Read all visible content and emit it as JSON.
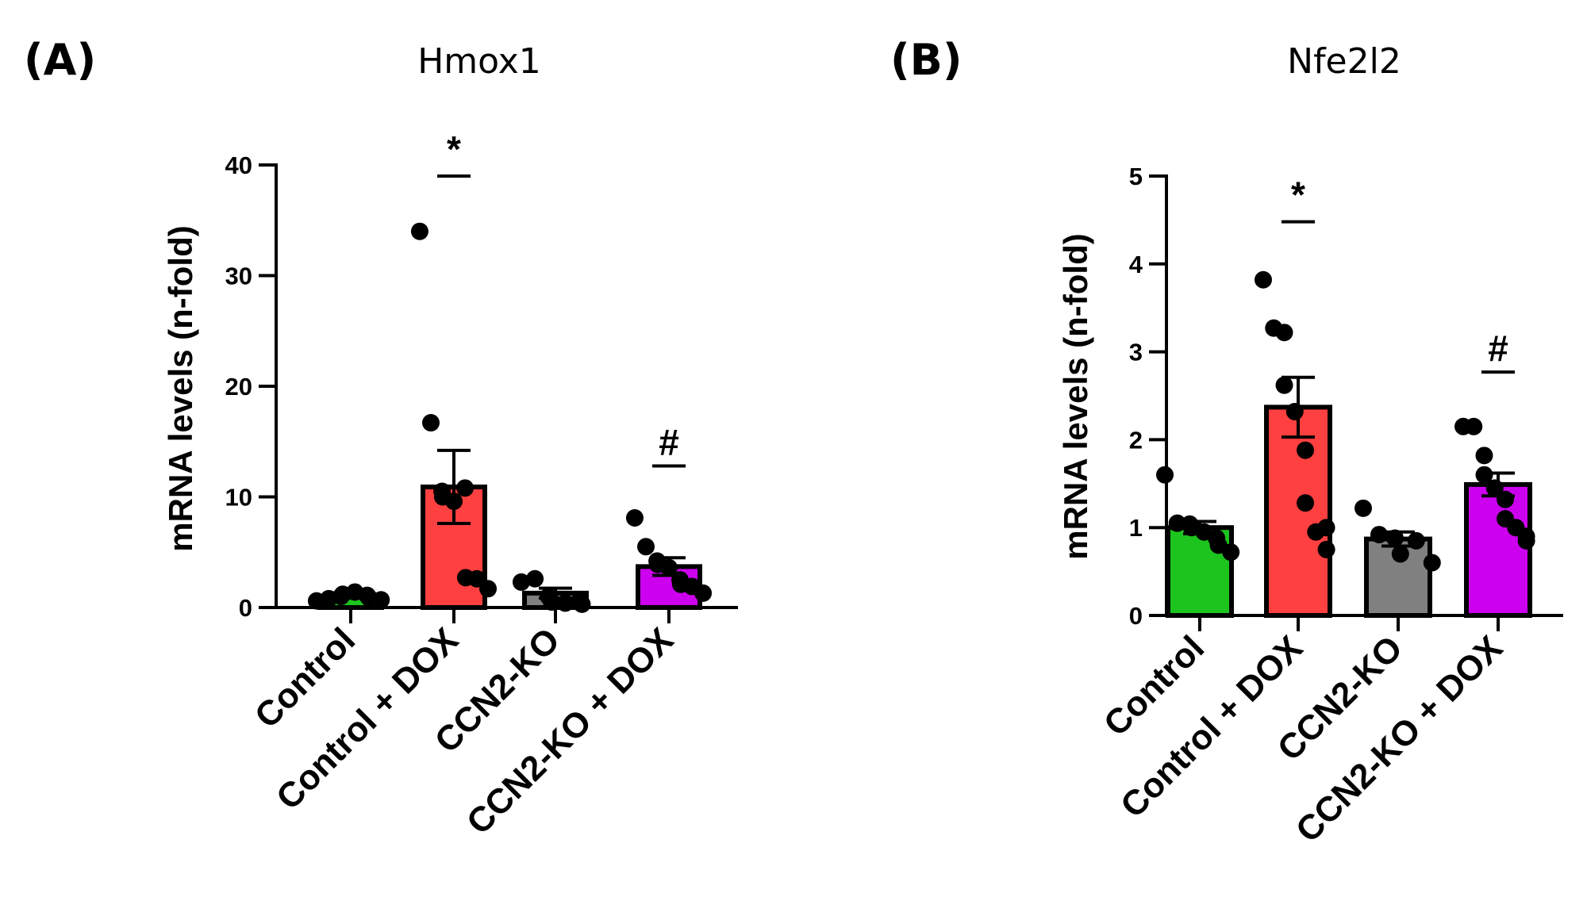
{
  "chart_data": [
    {
      "type": "bar",
      "panel": "(A)",
      "title": "Hmox1",
      "ylabel": "mRNA levels (n-fold)",
      "xlabel": "",
      "ylim": [
        0,
        40
      ],
      "yticks": [
        0,
        10,
        20,
        30,
        40
      ],
      "categories": [
        "Control",
        "Control + DOX",
        "CCN2-KO",
        "CCN2-KO + DOX"
      ],
      "colors": [
        "#1ec41e",
        "#ff4040",
        "#808080",
        "#cc00ee"
      ],
      "values": [
        1.0,
        10.9,
        1.3,
        3.7
      ],
      "sem": [
        0.15,
        3.3,
        0.45,
        0.8
      ],
      "points": [
        [
          0.6,
          0.8,
          1.0,
          1.2,
          1.4,
          1.1,
          0.9,
          0.7
        ],
        [
          34.0,
          16.7,
          10.5,
          10.0,
          9.6,
          10.8,
          2.7,
          2.6,
          1.7
        ],
        [
          2.3,
          2.6,
          1.0,
          0.5,
          0.4,
          0.5,
          0.3
        ],
        [
          8.1,
          5.5,
          4.2,
          3.9,
          3.6,
          2.5,
          2.1,
          1.9,
          1.3
        ]
      ],
      "significance": [
        {
          "category": 1,
          "symbol": "*",
          "bar_value": 39.0
        },
        {
          "category": 3,
          "symbol": "#",
          "bar_value": 12.8
        }
      ]
    },
    {
      "type": "bar",
      "panel": "(B)",
      "title": "Nfe2l2",
      "ylabel": "mRNA levels (n-fold)",
      "xlabel": "",
      "ylim": [
        0,
        5
      ],
      "yticks": [
        0,
        1,
        2,
        3,
        4,
        5
      ],
      "categories": [
        "Control",
        "Control + DOX",
        "CCN2-KO",
        "CCN2-KO + DOX"
      ],
      "colors": [
        "#1ec41e",
        "#ff4040",
        "#808080",
        "#cc00ee"
      ],
      "values": [
        1.0,
        2.37,
        0.87,
        1.49
      ],
      "sem": [
        0.07,
        0.34,
        0.08,
        0.13
      ],
      "points": [
        [
          1.6,
          1.05,
          1.04,
          1.0,
          0.95,
          0.88,
          0.8,
          0.72
        ],
        [
          3.82,
          3.27,
          3.22,
          2.62,
          2.32,
          1.88,
          1.28,
          0.95,
          1.0,
          0.75
        ],
        [
          1.22,
          0.92,
          0.88,
          0.7,
          0.85,
          0.6
        ],
        [
          2.15,
          2.15,
          1.82,
          1.6,
          1.45,
          1.32,
          1.1,
          1.0,
          0.9,
          0.85
        ]
      ],
      "significance": [
        {
          "category": 1,
          "symbol": "*",
          "bar_value": 4.48
        },
        {
          "category": 3,
          "symbol": "#",
          "bar_value": 2.77
        }
      ]
    }
  ]
}
